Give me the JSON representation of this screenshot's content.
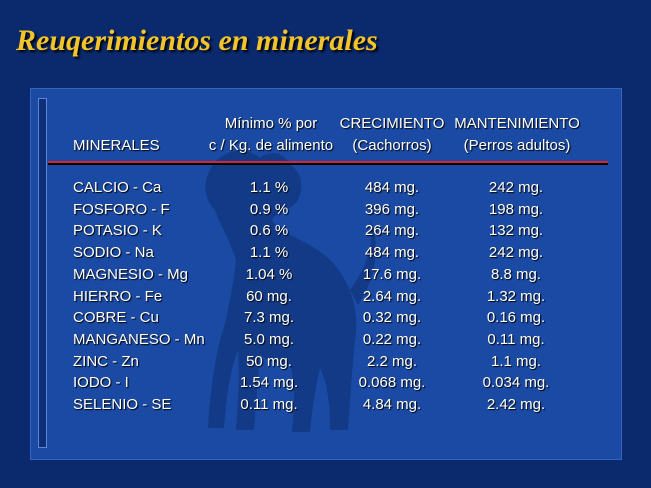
{
  "title": "Reuqerimientos en minerales",
  "headers": {
    "minerales": "MINERALES",
    "minimo_line1": "Mínimo % por",
    "minimo_line2": "c / Kg. de alimento",
    "crecimiento_line1": "CRECIMIENTO",
    "crecimiento_line2": "(Cachorros)",
    "mantenimiento_line1": "MANTENIMIENTO",
    "mantenimiento_line2": "(Perros adultos)"
  },
  "rows": [
    {
      "mineral": "CALCIO - Ca",
      "minimo": "1.1 %",
      "crecimiento": "484 mg.",
      "mantenimiento": "242 mg."
    },
    {
      "mineral": "FOSFORO - F",
      "minimo": "0.9 %",
      "crecimiento": "396 mg.",
      "mantenimiento": "198 mg."
    },
    {
      "mineral": "POTASIO - K",
      "minimo": "0.6 %",
      "crecimiento": "264 mg.",
      "mantenimiento": "132 mg."
    },
    {
      "mineral": "SODIO - Na",
      "minimo": "1.1 %",
      "crecimiento": "484 mg.",
      "mantenimiento": "242 mg."
    },
    {
      "mineral": "MAGNESIO - Mg",
      "minimo": "1.04 %",
      "crecimiento": "17.6 mg.",
      "mantenimiento": "8.8 mg."
    },
    {
      "mineral": "HIERRO - Fe",
      "minimo": "60 mg.",
      "crecimiento": "2.64 mg.",
      "mantenimiento": "1.32 mg."
    },
    {
      "mineral": "COBRE - Cu",
      "minimo": "7.3 mg.",
      "crecimiento": "0.32 mg.",
      "mantenimiento": "0.16 mg."
    },
    {
      "mineral": "MANGANESO - Mn",
      "minimo": "5.0 mg.",
      "crecimiento": "0.22 mg.",
      "mantenimiento": "0.11 mg."
    },
    {
      "mineral": "ZINC - Zn",
      "minimo": "50 mg.",
      "crecimiento": "2.2 mg.",
      "mantenimiento": "1.1 mg."
    },
    {
      "mineral": "IODO - I",
      "minimo": "1.54 mg.",
      "crecimiento": "0.068 mg.",
      "mantenimiento": "0.034 mg."
    },
    {
      "mineral": "SELENIO - SE",
      "minimo": "0.11 mg.",
      "crecimiento": "4.84 mg.",
      "mantenimiento": "2.42 mg."
    }
  ],
  "colors": {
    "background": "#0b2a6e",
    "panel": "#1a4aa3",
    "title": "#f2c42c",
    "rule": "#d4263a",
    "dog_silhouette": "#123a86"
  },
  "icons": {
    "dog": "dog-silhouette"
  }
}
